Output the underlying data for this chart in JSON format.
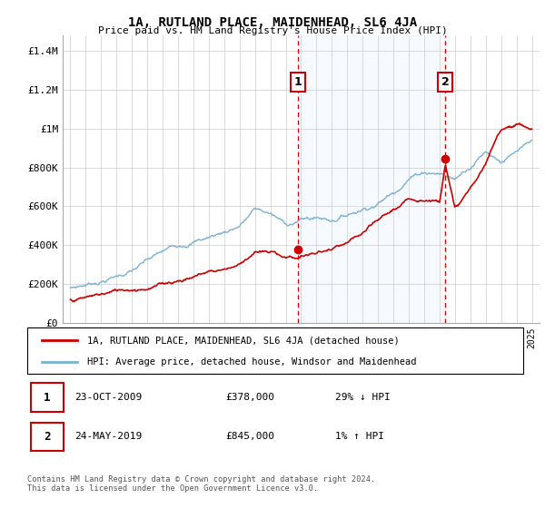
{
  "title": "1A, RUTLAND PLACE, MAIDENHEAD, SL6 4JA",
  "subtitle": "Price paid vs. HM Land Registry's House Price Index (HPI)",
  "ylabel_ticks": [
    "£0",
    "£200K",
    "£400K",
    "£600K",
    "£800K",
    "£1M",
    "£1.2M",
    "£1.4M"
  ],
  "ylabel_values": [
    0,
    200000,
    400000,
    600000,
    800000,
    1000000,
    1200000,
    1400000
  ],
  "ylim": [
    0,
    1480000
  ],
  "xmin": 1994.5,
  "xmax": 2025.5,
  "red_color": "#cc0000",
  "blue_color": "#7ab0d4",
  "shade_color": "#ddeeff",
  "marker1_date": 2009.8,
  "marker1_value": 378000,
  "marker2_date": 2019.38,
  "marker2_value": 845000,
  "legend_label_red": "1A, RUTLAND PLACE, MAIDENHEAD, SL6 4JA (detached house)",
  "legend_label_blue": "HPI: Average price, detached house, Windsor and Maidenhead",
  "table_row1": [
    "1",
    "23-OCT-2009",
    "£378,000",
    "29% ↓ HPI"
  ],
  "table_row2": [
    "2",
    "24-MAY-2019",
    "£845,000",
    "1% ↑ HPI"
  ],
  "footer": "Contains HM Land Registry data © Crown copyright and database right 2024.\nThis data is licensed under the Open Government Licence v3.0.",
  "vline1_x": 2009.8,
  "vline2_x": 2019.38
}
